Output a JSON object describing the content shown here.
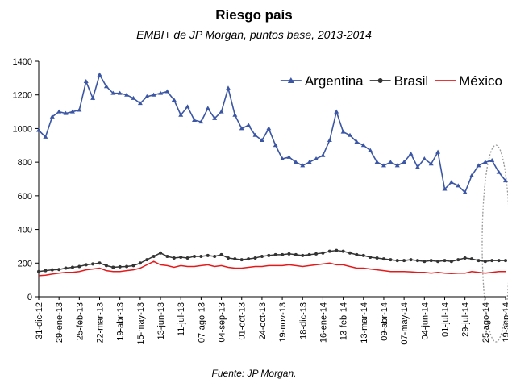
{
  "chart_data": {
    "type": "line",
    "title": "Riesgo país",
    "subtitle": "EMBI+ de JP Morgan, puntos base, 2013-2014",
    "source": "Fuente: JP Morgan.",
    "categories": [
      "31-dic-12",
      null,
      null,
      "29-ene-13",
      null,
      null,
      "25-feb-13",
      null,
      null,
      "22-mar-13",
      null,
      null,
      "19-abr-13",
      null,
      null,
      "15-may-13",
      null,
      null,
      "13-jun-13",
      null,
      null,
      "11-jul-13",
      null,
      null,
      "07-ago-13",
      null,
      null,
      "04-sep-13",
      null,
      null,
      "01-oct-13",
      null,
      null,
      "24-oct-13",
      null,
      null,
      "19-nov-13",
      null,
      null,
      "18-dic-13",
      null,
      null,
      "16-ene-14",
      null,
      null,
      "13-feb-14",
      null,
      null,
      "13-mar-14",
      null,
      null,
      "09-abr-14",
      null,
      null,
      "07-may-14",
      null,
      null,
      "04-jun-14",
      null,
      null,
      "01-jul-14",
      null,
      null,
      "29-jul-14",
      null,
      null,
      "25-ago-14",
      null,
      null,
      "19-sep-14"
    ],
    "series": [
      {
        "name": "Argentina",
        "color": "#3b56a5",
        "marker": "triangle",
        "values": [
          990,
          950,
          1070,
          1100,
          1090,
          1100,
          1110,
          1280,
          1180,
          1320,
          1250,
          1210,
          1210,
          1200,
          1180,
          1150,
          1190,
          1200,
          1210,
          1220,
          1170,
          1080,
          1130,
          1050,
          1040,
          1120,
          1060,
          1100,
          1240,
          1080,
          1000,
          1020,
          960,
          930,
          1000,
          900,
          820,
          830,
          800,
          780,
          800,
          820,
          840,
          930,
          1100,
          980,
          960,
          920,
          900,
          870,
          800,
          780,
          800,
          780,
          800,
          850,
          770,
          820,
          790,
          860,
          640,
          680,
          660,
          620,
          720,
          780,
          800,
          810,
          740,
          690
        ]
      },
      {
        "name": "Brasil",
        "color": "#333333",
        "marker": "circle",
        "values": [
          150,
          155,
          160,
          162,
          170,
          175,
          180,
          190,
          195,
          200,
          185,
          175,
          178,
          180,
          185,
          200,
          220,
          240,
          260,
          240,
          230,
          235,
          230,
          240,
          240,
          245,
          240,
          250,
          230,
          225,
          220,
          225,
          230,
          240,
          245,
          250,
          250,
          255,
          250,
          245,
          250,
          255,
          260,
          270,
          275,
          270,
          260,
          250,
          245,
          235,
          230,
          225,
          220,
          215,
          215,
          220,
          215,
          210,
          215,
          210,
          215,
          210,
          220,
          230,
          225,
          215,
          210,
          215,
          215,
          215
        ]
      },
      {
        "name": "México",
        "color": "#e31a1c",
        "marker": "none",
        "values": [
          125,
          128,
          135,
          140,
          145,
          145,
          150,
          160,
          165,
          170,
          155,
          150,
          150,
          155,
          160,
          170,
          190,
          210,
          190,
          185,
          175,
          185,
          180,
          180,
          185,
          190,
          180,
          185,
          175,
          170,
          170,
          175,
          180,
          180,
          185,
          185,
          185,
          190,
          185,
          180,
          185,
          190,
          195,
          200,
          190,
          190,
          180,
          170,
          170,
          165,
          160,
          155,
          150,
          150,
          150,
          148,
          145,
          145,
          140,
          145,
          140,
          138,
          140,
          140,
          150,
          145,
          140,
          145,
          150,
          150
        ]
      }
    ],
    "ylim": [
      0,
      1400
    ],
    "yticks": [
      0,
      200,
      400,
      600,
      800,
      1000,
      1200,
      1400
    ],
    "grid": false,
    "legend": "top-right"
  }
}
